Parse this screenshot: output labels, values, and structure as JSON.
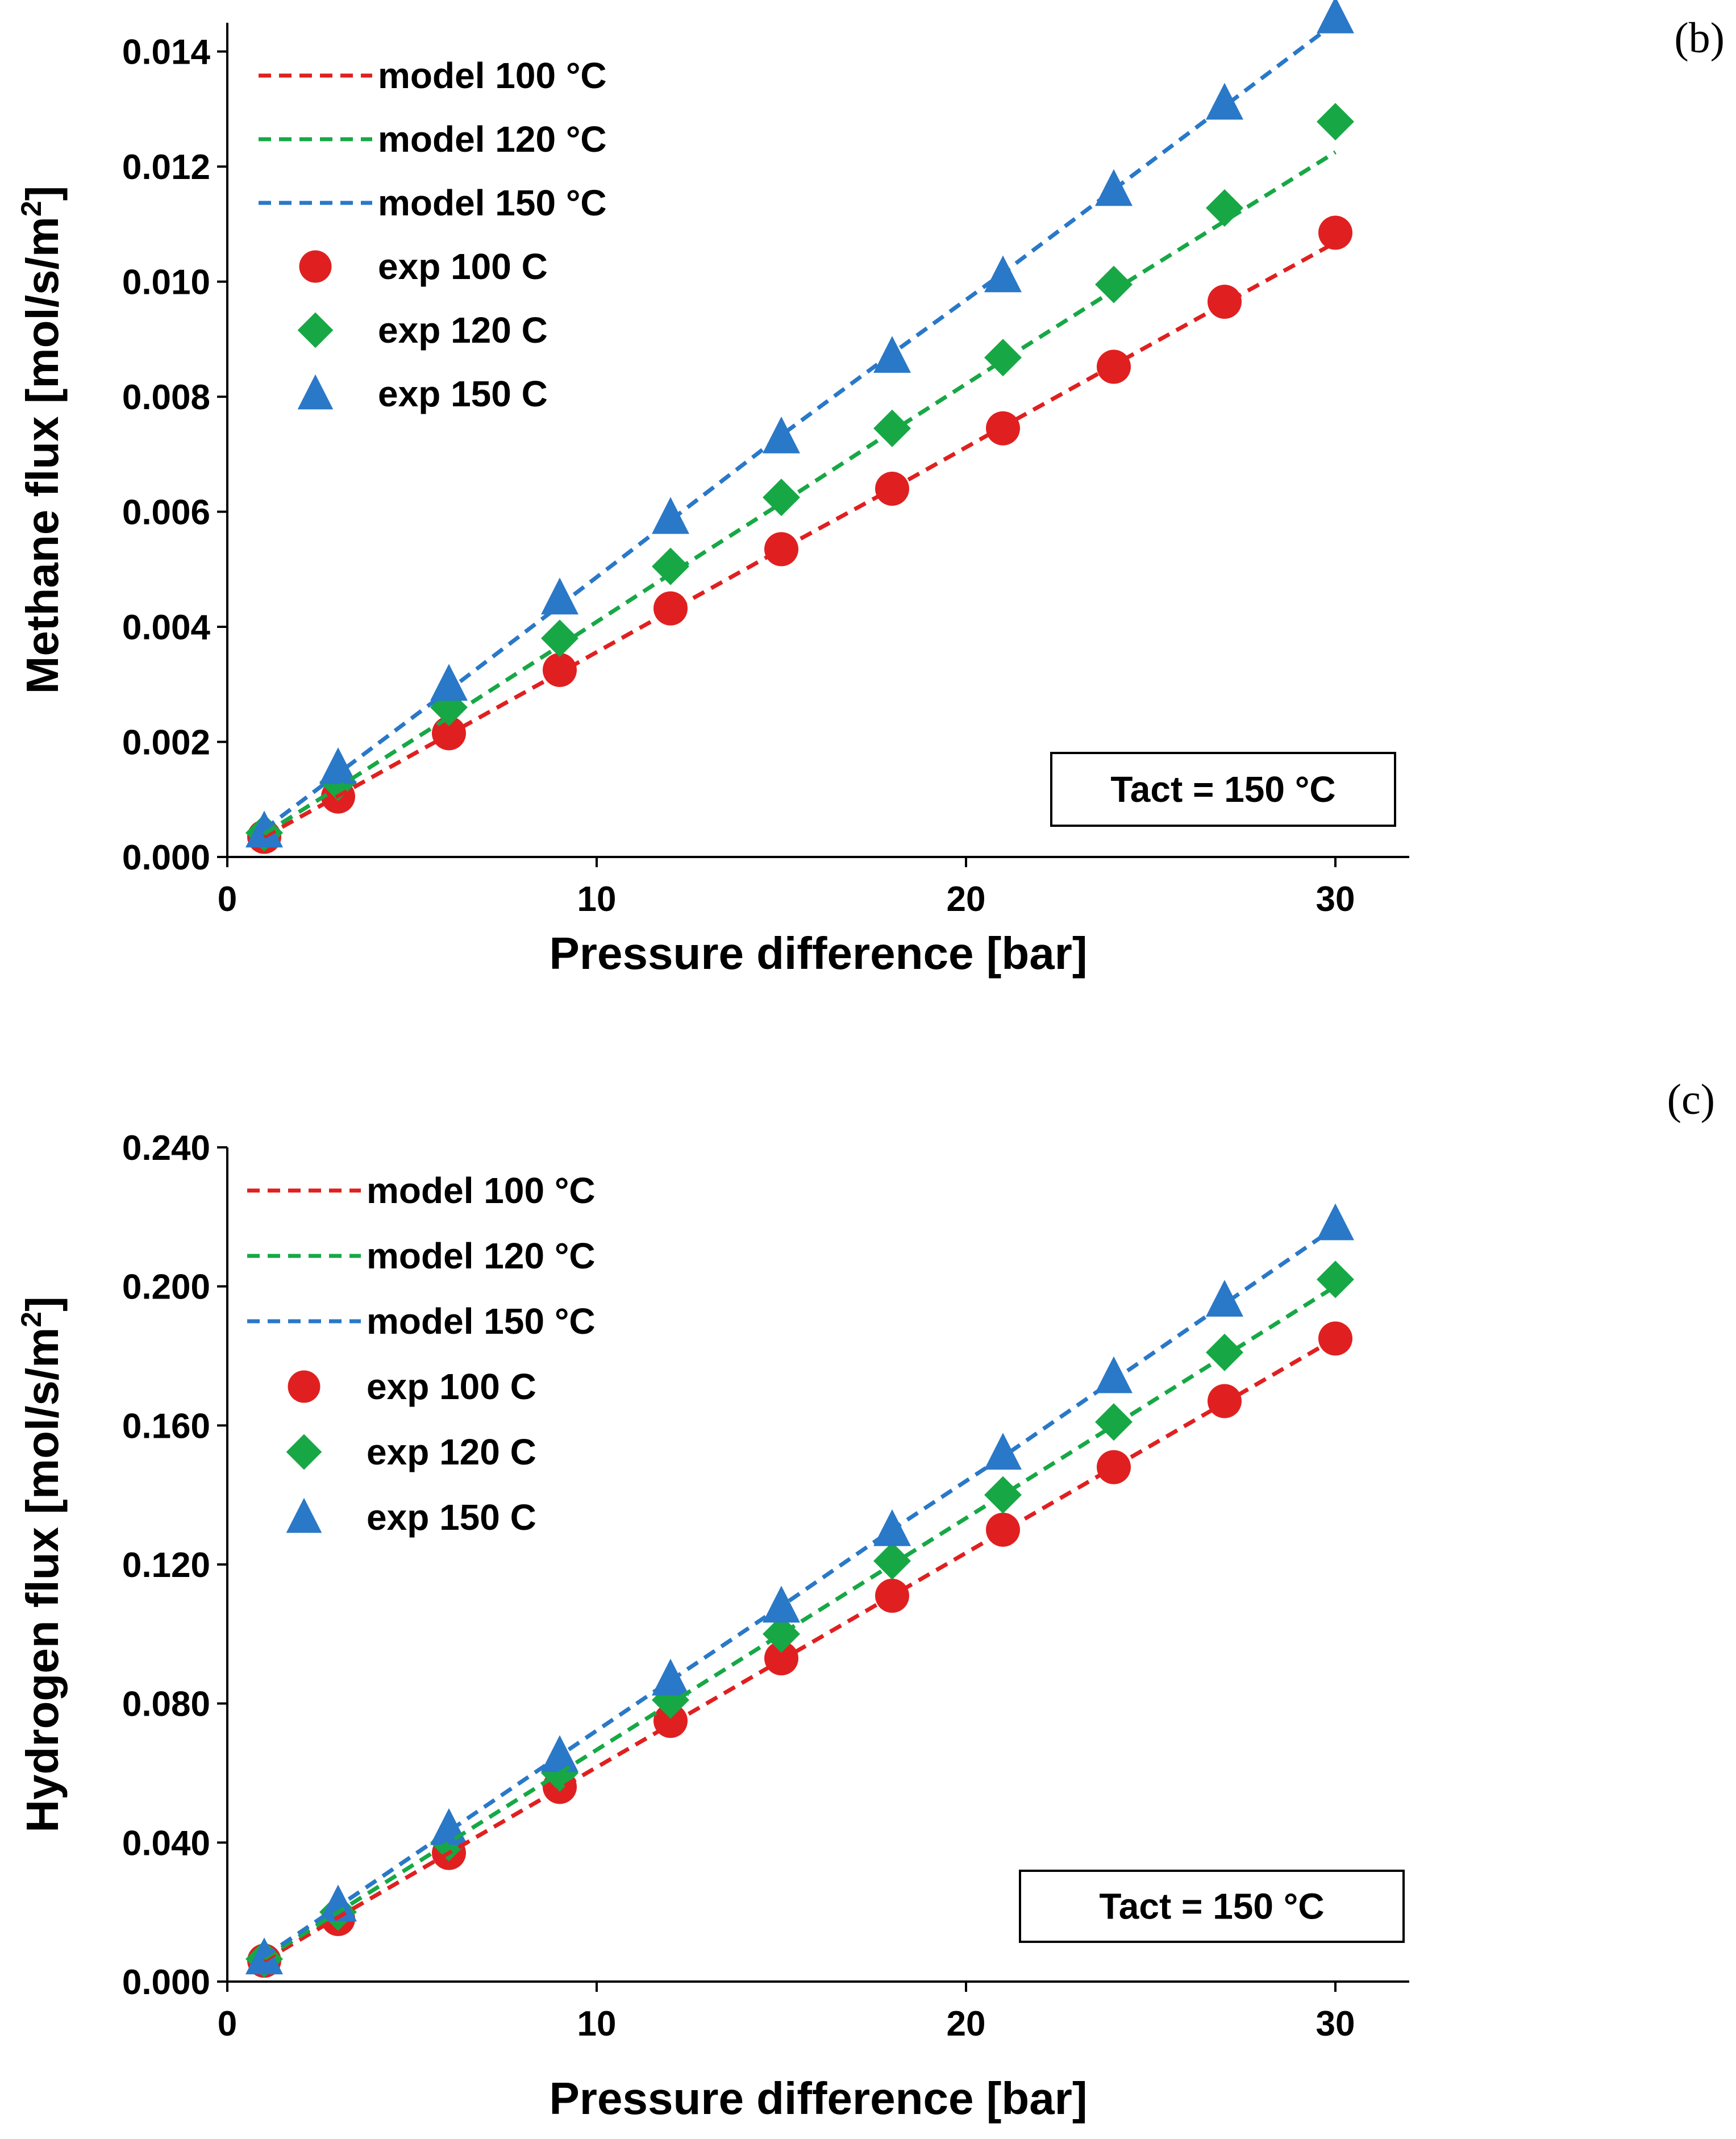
{
  "colors": {
    "series_100": "#e02020",
    "series_120": "#17a845",
    "series_150": "#2a78c8",
    "axis": "#000000"
  },
  "chart_data": [
    {
      "type": "scatter",
      "panel_label": "(b)",
      "title": "",
      "xlabel": "Pressure difference [bar]",
      "ylabel": "Methane flux [mol/s/m2]",
      "ylabel_main": "Methane flux [mol/s/m",
      "ylabel_sup": "2",
      "ylabel_end": "]",
      "xlim": [
        0,
        32
      ],
      "ylim": [
        0,
        0.0145
      ],
      "xticks": [
        "0",
        "10",
        "20",
        "30"
      ],
      "yticks": [
        "0.000",
        "0.002",
        "0.004",
        "0.006",
        "0.008",
        "0.010",
        "0.012",
        "0.014"
      ],
      "legend_position": "top-left",
      "annotation": "Tact = 150 °C",
      "x": [
        1,
        3,
        6,
        9,
        12,
        15,
        18,
        21,
        24,
        27,
        30
      ],
      "series": [
        {
          "name": "model 100 °C",
          "kind": "line",
          "color_key": "series_100",
          "values": [
            0.00035,
            0.00106,
            0.00213,
            0.0032,
            0.00428,
            0.00535,
            0.0064,
            0.00748,
            0.00855,
            0.00962,
            0.01068
          ]
        },
        {
          "name": "model 120 °C",
          "kind": "line",
          "color_key": "series_120",
          "values": [
            0.0004,
            0.00121,
            0.00243,
            0.00367,
            0.00492,
            0.00615,
            0.0074,
            0.00863,
            0.00985,
            0.01105,
            0.01225
          ]
        },
        {
          "name": "model 150 °C",
          "kind": "line",
          "color_key": "series_150",
          "values": [
            0.00048,
            0.00145,
            0.0029,
            0.00437,
            0.00585,
            0.00733,
            0.00875,
            0.01015,
            0.0116,
            0.01305,
            0.0145
          ]
        },
        {
          "name": "exp 100 C",
          "kind": "circle",
          "color_key": "series_100",
          "values": [
            0.00035,
            0.00105,
            0.00215,
            0.00325,
            0.00432,
            0.00535,
            0.0064,
            0.00745,
            0.00852,
            0.00965,
            0.01085
          ]
        },
        {
          "name": "exp 120 C",
          "kind": "diamond",
          "color_key": "series_120",
          "values": [
            0.00042,
            0.0013,
            0.0026,
            0.0038,
            0.00505,
            0.00625,
            0.00745,
            0.00868,
            0.00995,
            0.01128,
            0.01278
          ]
        },
        {
          "name": "exp 150 C",
          "kind": "triangle",
          "color_key": "series_150",
          "values": [
            0.00045,
            0.00155,
            0.003,
            0.0045,
            0.0059,
            0.0073,
            0.0087,
            0.0101,
            0.0116,
            0.0131,
            0.0146
          ]
        }
      ]
    },
    {
      "type": "scatter",
      "panel_label": "(c)",
      "title": "",
      "xlabel": "Pressure difference [bar]",
      "ylabel": "Hydrogen flux [mol/s/m2]",
      "ylabel_main": "Hydrogen flux [mol/s/m",
      "ylabel_sup": "2",
      "ylabel_end": "]",
      "xlim": [
        0,
        32
      ],
      "ylim": [
        0,
        0.24
      ],
      "xticks": [
        "0",
        "10",
        "20",
        "30"
      ],
      "yticks": [
        "0.000",
        "0.040",
        "0.080",
        "0.120",
        "0.160",
        "0.200",
        "0.240"
      ],
      "legend_position": "top-left",
      "annotation": "Tact = 150 °C",
      "x": [
        1,
        3,
        6,
        9,
        12,
        15,
        18,
        21,
        24,
        27,
        30
      ],
      "series": [
        {
          "name": "model 100 °C",
          "kind": "line",
          "color_key": "series_100",
          "values": [
            0.006,
            0.0185,
            0.037,
            0.0555,
            0.074,
            0.0925,
            0.111,
            0.1295,
            0.148,
            0.1665,
            0.185
          ]
        },
        {
          "name": "model 120 °C",
          "kind": "line",
          "color_key": "series_120",
          "values": [
            0.0066,
            0.02,
            0.04,
            0.06,
            0.08,
            0.1,
            0.12,
            0.14,
            0.16,
            0.18,
            0.2
          ]
        },
        {
          "name": "model 150 °C",
          "kind": "line",
          "color_key": "series_150",
          "values": [
            0.0072,
            0.0216,
            0.0433,
            0.065,
            0.0866,
            0.108,
            0.13,
            0.151,
            0.173,
            0.195,
            0.217
          ]
        },
        {
          "name": "exp 100 C",
          "kind": "circle",
          "color_key": "series_100",
          "values": [
            0.006,
            0.018,
            0.037,
            0.056,
            0.075,
            0.093,
            0.111,
            0.13,
            0.148,
            0.167,
            0.185
          ]
        },
        {
          "name": "exp 120 C",
          "kind": "diamond",
          "color_key": "series_120",
          "values": [
            0.0065,
            0.02,
            0.04,
            0.06,
            0.081,
            0.1,
            0.121,
            0.14,
            0.161,
            0.181,
            0.202
          ]
        },
        {
          "name": "exp 150 C",
          "kind": "triangle",
          "color_key": "series_150",
          "values": [
            0.0068,
            0.022,
            0.044,
            0.065,
            0.087,
            0.108,
            0.13,
            0.152,
            0.174,
            0.196,
            0.218
          ]
        }
      ]
    }
  ]
}
